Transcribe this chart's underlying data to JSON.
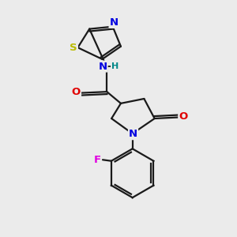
{
  "background_color": "#ebebeb",
  "bond_color": "#1a1a1a",
  "bond_width": 1.6,
  "atom_colors": {
    "N": "#0000e0",
    "O": "#e00000",
    "S": "#bbbb00",
    "F": "#e000e0",
    "H": "#008888",
    "C": "#1a1a1a"
  },
  "font_size": 9.5
}
